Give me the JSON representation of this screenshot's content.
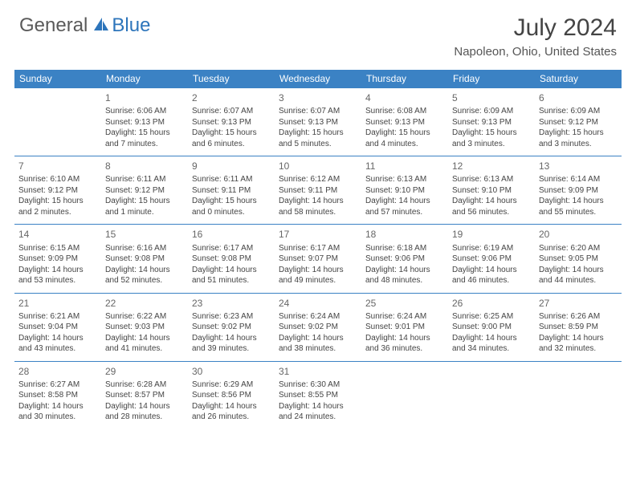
{
  "logo": {
    "general": "General",
    "blue": "Blue"
  },
  "title": "July 2024",
  "location": "Napoleon, Ohio, United States",
  "colors": {
    "header_bg": "#3b82c4",
    "header_text": "#ffffff",
    "border": "#3b82c4",
    "text": "#444444",
    "title": "#444444",
    "logo_gray": "#5a5a5a",
    "logo_blue": "#2d75bb",
    "background": "#ffffff"
  },
  "weekdays": [
    "Sunday",
    "Monday",
    "Tuesday",
    "Wednesday",
    "Thursday",
    "Friday",
    "Saturday"
  ],
  "weeks": [
    [
      null,
      {
        "n": "1",
        "sr": "Sunrise: 6:06 AM",
        "ss": "Sunset: 9:13 PM",
        "d1": "Daylight: 15 hours",
        "d2": "and 7 minutes."
      },
      {
        "n": "2",
        "sr": "Sunrise: 6:07 AM",
        "ss": "Sunset: 9:13 PM",
        "d1": "Daylight: 15 hours",
        "d2": "and 6 minutes."
      },
      {
        "n": "3",
        "sr": "Sunrise: 6:07 AM",
        "ss": "Sunset: 9:13 PM",
        "d1": "Daylight: 15 hours",
        "d2": "and 5 minutes."
      },
      {
        "n": "4",
        "sr": "Sunrise: 6:08 AM",
        "ss": "Sunset: 9:13 PM",
        "d1": "Daylight: 15 hours",
        "d2": "and 4 minutes."
      },
      {
        "n": "5",
        "sr": "Sunrise: 6:09 AM",
        "ss": "Sunset: 9:13 PM",
        "d1": "Daylight: 15 hours",
        "d2": "and 3 minutes."
      },
      {
        "n": "6",
        "sr": "Sunrise: 6:09 AM",
        "ss": "Sunset: 9:12 PM",
        "d1": "Daylight: 15 hours",
        "d2": "and 3 minutes."
      }
    ],
    [
      {
        "n": "7",
        "sr": "Sunrise: 6:10 AM",
        "ss": "Sunset: 9:12 PM",
        "d1": "Daylight: 15 hours",
        "d2": "and 2 minutes."
      },
      {
        "n": "8",
        "sr": "Sunrise: 6:11 AM",
        "ss": "Sunset: 9:12 PM",
        "d1": "Daylight: 15 hours",
        "d2": "and 1 minute."
      },
      {
        "n": "9",
        "sr": "Sunrise: 6:11 AM",
        "ss": "Sunset: 9:11 PM",
        "d1": "Daylight: 15 hours",
        "d2": "and 0 minutes."
      },
      {
        "n": "10",
        "sr": "Sunrise: 6:12 AM",
        "ss": "Sunset: 9:11 PM",
        "d1": "Daylight: 14 hours",
        "d2": "and 58 minutes."
      },
      {
        "n": "11",
        "sr": "Sunrise: 6:13 AM",
        "ss": "Sunset: 9:10 PM",
        "d1": "Daylight: 14 hours",
        "d2": "and 57 minutes."
      },
      {
        "n": "12",
        "sr": "Sunrise: 6:13 AM",
        "ss": "Sunset: 9:10 PM",
        "d1": "Daylight: 14 hours",
        "d2": "and 56 minutes."
      },
      {
        "n": "13",
        "sr": "Sunrise: 6:14 AM",
        "ss": "Sunset: 9:09 PM",
        "d1": "Daylight: 14 hours",
        "d2": "and 55 minutes."
      }
    ],
    [
      {
        "n": "14",
        "sr": "Sunrise: 6:15 AM",
        "ss": "Sunset: 9:09 PM",
        "d1": "Daylight: 14 hours",
        "d2": "and 53 minutes."
      },
      {
        "n": "15",
        "sr": "Sunrise: 6:16 AM",
        "ss": "Sunset: 9:08 PM",
        "d1": "Daylight: 14 hours",
        "d2": "and 52 minutes."
      },
      {
        "n": "16",
        "sr": "Sunrise: 6:17 AM",
        "ss": "Sunset: 9:08 PM",
        "d1": "Daylight: 14 hours",
        "d2": "and 51 minutes."
      },
      {
        "n": "17",
        "sr": "Sunrise: 6:17 AM",
        "ss": "Sunset: 9:07 PM",
        "d1": "Daylight: 14 hours",
        "d2": "and 49 minutes."
      },
      {
        "n": "18",
        "sr": "Sunrise: 6:18 AM",
        "ss": "Sunset: 9:06 PM",
        "d1": "Daylight: 14 hours",
        "d2": "and 48 minutes."
      },
      {
        "n": "19",
        "sr": "Sunrise: 6:19 AM",
        "ss": "Sunset: 9:06 PM",
        "d1": "Daylight: 14 hours",
        "d2": "and 46 minutes."
      },
      {
        "n": "20",
        "sr": "Sunrise: 6:20 AM",
        "ss": "Sunset: 9:05 PM",
        "d1": "Daylight: 14 hours",
        "d2": "and 44 minutes."
      }
    ],
    [
      {
        "n": "21",
        "sr": "Sunrise: 6:21 AM",
        "ss": "Sunset: 9:04 PM",
        "d1": "Daylight: 14 hours",
        "d2": "and 43 minutes."
      },
      {
        "n": "22",
        "sr": "Sunrise: 6:22 AM",
        "ss": "Sunset: 9:03 PM",
        "d1": "Daylight: 14 hours",
        "d2": "and 41 minutes."
      },
      {
        "n": "23",
        "sr": "Sunrise: 6:23 AM",
        "ss": "Sunset: 9:02 PM",
        "d1": "Daylight: 14 hours",
        "d2": "and 39 minutes."
      },
      {
        "n": "24",
        "sr": "Sunrise: 6:24 AM",
        "ss": "Sunset: 9:02 PM",
        "d1": "Daylight: 14 hours",
        "d2": "and 38 minutes."
      },
      {
        "n": "25",
        "sr": "Sunrise: 6:24 AM",
        "ss": "Sunset: 9:01 PM",
        "d1": "Daylight: 14 hours",
        "d2": "and 36 minutes."
      },
      {
        "n": "26",
        "sr": "Sunrise: 6:25 AM",
        "ss": "Sunset: 9:00 PM",
        "d1": "Daylight: 14 hours",
        "d2": "and 34 minutes."
      },
      {
        "n": "27",
        "sr": "Sunrise: 6:26 AM",
        "ss": "Sunset: 8:59 PM",
        "d1": "Daylight: 14 hours",
        "d2": "and 32 minutes."
      }
    ],
    [
      {
        "n": "28",
        "sr": "Sunrise: 6:27 AM",
        "ss": "Sunset: 8:58 PM",
        "d1": "Daylight: 14 hours",
        "d2": "and 30 minutes."
      },
      {
        "n": "29",
        "sr": "Sunrise: 6:28 AM",
        "ss": "Sunset: 8:57 PM",
        "d1": "Daylight: 14 hours",
        "d2": "and 28 minutes."
      },
      {
        "n": "30",
        "sr": "Sunrise: 6:29 AM",
        "ss": "Sunset: 8:56 PM",
        "d1": "Daylight: 14 hours",
        "d2": "and 26 minutes."
      },
      {
        "n": "31",
        "sr": "Sunrise: 6:30 AM",
        "ss": "Sunset: 8:55 PM",
        "d1": "Daylight: 14 hours",
        "d2": "and 24 minutes."
      },
      null,
      null,
      null
    ]
  ]
}
